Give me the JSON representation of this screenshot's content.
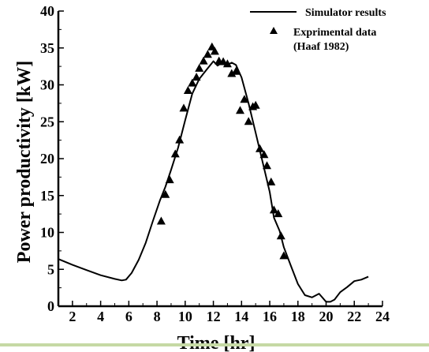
{
  "chart_data": {
    "type": "line",
    "xlabel": "Time [hr]",
    "ylabel": "Power productivity [kW]",
    "xlim": [
      1,
      24
    ],
    "ylim": [
      0,
      40
    ],
    "x_ticks": [
      2,
      4,
      6,
      8,
      10,
      12,
      14,
      16,
      18,
      20,
      22,
      24
    ],
    "y_ticks": [
      0,
      5,
      10,
      15,
      20,
      25,
      30,
      35,
      40
    ],
    "legend_position": "top-right",
    "series": [
      {
        "name": "Simulator results",
        "style": "line",
        "color": "#000000",
        "x": [
          1.0,
          2.0,
          3.0,
          4.0,
          5.0,
          5.5,
          5.8,
          6.2,
          6.7,
          7.2,
          7.7,
          8.2,
          8.6,
          9.0,
          9.5,
          10.0,
          10.5,
          11.0,
          11.5,
          12.0,
          12.3,
          12.6,
          13.0,
          13.3,
          13.6,
          14.0,
          14.5,
          15.0,
          15.5,
          16.0,
          16.3,
          16.7,
          17.0,
          17.5,
          18.0,
          18.5,
          19.0,
          19.5,
          20.0,
          20.3,
          20.6,
          21.0,
          21.5,
          22.0,
          22.5,
          23.0
        ],
        "y": [
          6.4,
          5.6,
          4.9,
          4.2,
          3.7,
          3.5,
          3.6,
          4.5,
          6.3,
          8.6,
          11.5,
          14.3,
          16.2,
          18.5,
          21.5,
          25.2,
          28.8,
          30.8,
          32.0,
          33.2,
          32.6,
          33.0,
          32.7,
          33.0,
          32.7,
          31.0,
          27.5,
          23.5,
          19.5,
          15.5,
          12.0,
          10.2,
          8.0,
          5.5,
          3.0,
          1.5,
          1.2,
          1.7,
          0.6,
          0.6,
          0.9,
          1.9,
          2.6,
          3.4,
          3.6,
          4.0
        ]
      },
      {
        "name": "Exprimental data (Haaf 1982)",
        "style": "triangle-marker",
        "color": "#000000",
        "x": [
          8.3,
          8.6,
          8.9,
          9.3,
          9.6,
          9.9,
          10.2,
          10.5,
          10.8,
          11.0,
          11.3,
          11.6,
          11.9,
          12.1,
          12.4,
          12.7,
          13.0,
          13.3,
          13.6,
          13.9,
          14.2,
          14.5,
          14.8,
          15.0,
          15.3,
          15.6,
          15.8,
          16.1,
          16.3,
          16.6,
          16.8,
          17.0
        ],
        "y": [
          11.5,
          15.1,
          17.1,
          20.6,
          22.5,
          26.8,
          29.2,
          30.2,
          31.0,
          32.2,
          33.2,
          34.1,
          35.1,
          34.5,
          33.2,
          33.1,
          32.8,
          31.5,
          31.8,
          26.5,
          28.0,
          25.0,
          27.0,
          27.2,
          21.3,
          20.5,
          19.0,
          16.8,
          13.0,
          12.5,
          9.5,
          6.8
        ]
      }
    ],
    "legend": {
      "line_label": "Simulator results",
      "marker_label_line1": "Exprimental data",
      "marker_label_line2": "(Haaf 1982)"
    }
  },
  "colors": {
    "ink": "#000000",
    "bottom_bar": "#c5d9a4"
  }
}
